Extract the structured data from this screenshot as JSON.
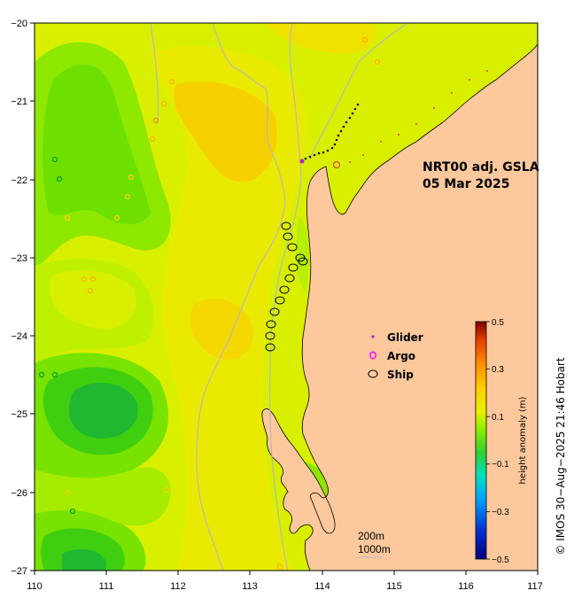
{
  "title_line1": "NRT00 adj. GSLA",
  "title_line2": "05 Mar 2025",
  "legend": {
    "glider": "Glider",
    "argo": "Argo",
    "ship": "Ship"
  },
  "colorbar": {
    "title": "height anomaly (m)",
    "ticks": [
      {
        "value": 0.5,
        "label": "0.5"
      },
      {
        "value": 0.3,
        "label": "0.3"
      },
      {
        "value": 0.1,
        "label": "0.1"
      },
      {
        "value": -0.1,
        "label": "−0.1"
      },
      {
        "value": -0.3,
        "label": "−0.3"
      },
      {
        "value": -0.5,
        "label": "−0.5"
      }
    ]
  },
  "isobaths": {
    "line1": "200m",
    "line2": "1000m"
  },
  "credit": "© IMOS 30−Aug−2025 21:46 Hobart",
  "axes": {
    "x_ticks": [
      "110",
      "111",
      "112",
      "113",
      "114",
      "115",
      "116",
      "117"
    ],
    "y_ticks": [
      "−20",
      "−21",
      "−22",
      "−23",
      "−24",
      "−25",
      "−26",
      "−27"
    ]
  },
  "colors": {
    "land": "#fdc89c",
    "high": "#ffb000",
    "mid_high": "#f3e800",
    "neutral": "#d6f000",
    "low": "#6fe600",
    "lower": "#38cf20",
    "lowest": "#18b830",
    "isobath": "#b8b8b8",
    "glider": "#c020c0",
    "argo": "#ff00ff"
  }
}
